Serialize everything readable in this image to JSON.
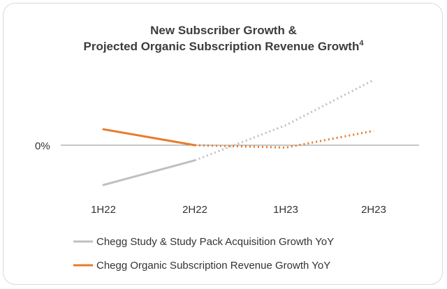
{
  "chart_data": {
    "type": "line",
    "title_line1": "New Subscriber Growth &",
    "title_line2": "Projected Organic Subscription Revenue Growth",
    "title_superscript": "4",
    "categories": [
      "1H22",
      "2H22",
      "1H23",
      "2H23"
    ],
    "y_axis_label": "0%",
    "y_reference": 0,
    "ylim": [
      -6,
      10
    ],
    "grid": false,
    "legend_position": "bottom",
    "series": [
      {
        "name": "Chegg Study & Study Pack Acquisition Growth YoY",
        "color": "#c0c0c0",
        "values": [
          -5.0,
          -1.9,
          2.5,
          8.2
        ],
        "actual_through_index": 1,
        "style_actual": "solid",
        "style_projected": "dotted"
      },
      {
        "name": "Chegg Organic Subscription Revenue Growth YoY",
        "color": "#e87b2a",
        "values": [
          2.0,
          0.0,
          -0.3,
          1.8
        ],
        "actual_through_index": 1,
        "style_actual": "solid",
        "style_projected": "dotted"
      }
    ]
  }
}
